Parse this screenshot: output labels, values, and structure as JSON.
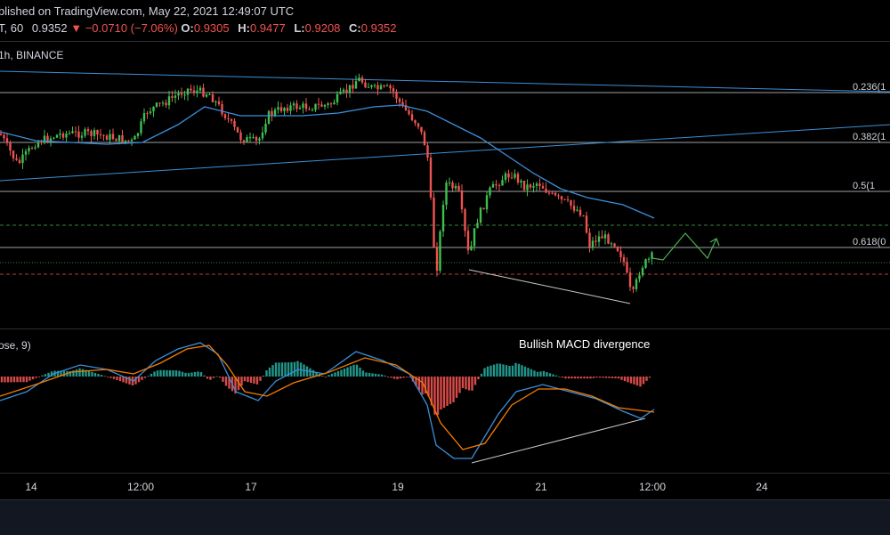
{
  "header": {
    "published": "blished on TradingView.com, May 22, 2021 12:49:07 UTC",
    "symbol_prefix": "T, 60",
    "close_price": "0.9352",
    "change": "−0.0710 (−7.06%)",
    "o_label": "O:",
    "o_value": "0.9305",
    "h_label": "H:",
    "h_value": "0.9477",
    "l_label": "L:",
    "l_value": "0.9208",
    "c_label": "C:",
    "c_value": "0.9352",
    "symbol_line": "1h, BINANCE"
  },
  "macd_pane": {
    "indicator_label": "ose, 9)"
  },
  "colors": {
    "up": "#26a69a",
    "up_candle": "#3fbf4f",
    "down": "#ef5350",
    "ma": "#3b8fd9",
    "signal": "#f57c00",
    "fib": "#d1d4dc",
    "trend": "#2962ff",
    "projection": "#4caf50",
    "divergence": "#c8c8c8"
  },
  "chart_data": [
    {
      "type": "candlestick",
      "title": "",
      "annotations": {
        "fib_levels": [
          {
            "label": "0.236(1",
            "ratio": 0.236
          },
          {
            "label": "0.382(1",
            "ratio": 0.382
          },
          {
            "label": "0.5(1",
            "ratio": 0.5
          },
          {
            "label": "0.618(0",
            "ratio": 0.618
          }
        ],
        "overlays": [
          "moving-average",
          "descending-trendline",
          "ascending-trendline",
          "projection-zigzag",
          "divergence-line",
          "dashed-support-lines"
        ]
      },
      "x_ticks": [
        "14",
        "12:00",
        "17",
        "19",
        "21",
        "12:00",
        "24"
      ],
      "grid": false
    },
    {
      "type": "macd",
      "title": "",
      "annotation": "Bullish MACD divergence",
      "series": [
        {
          "name": "MACD"
        },
        {
          "name": "Signal"
        },
        {
          "name": "Histogram"
        }
      ]
    }
  ]
}
